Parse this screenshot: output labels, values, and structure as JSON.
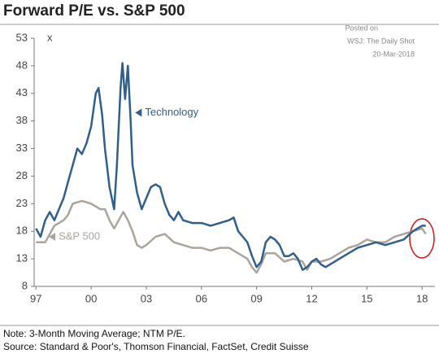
{
  "chart_data": {
    "type": "line",
    "title": "Forward P/E vs. S&P 500",
    "unit_label": "x",
    "credit": [
      "Posted on",
      "WSJ: The Daily Shot",
      "20-Mar-2018"
    ],
    "notes": [
      "Note: 3-Month Moving Average; NTM P/E.",
      "Source: Standard & Poor's, Thomson Financial, FactSet, Credit Suisse"
    ],
    "xlim": [
      1996.9,
      2018.7
    ],
    "xticks": [
      {
        "value": 1997,
        "label": "97"
      },
      {
        "value": 2000,
        "label": "00"
      },
      {
        "value": 2003,
        "label": "03"
      },
      {
        "value": 2006,
        "label": "06"
      },
      {
        "value": 2009,
        "label": "09"
      },
      {
        "value": 2012,
        "label": "12"
      },
      {
        "value": 2015,
        "label": "15"
      },
      {
        "value": 2018,
        "label": "18"
      }
    ],
    "ylim": [
      8,
      53
    ],
    "yticks": [
      8,
      13,
      18,
      23,
      28,
      33,
      38,
      43,
      48,
      53
    ],
    "series": [
      {
        "name": "Technology",
        "color": "#2f5f8a",
        "x": [
          1997.0,
          1997.25,
          1997.5,
          1997.75,
          1998.0,
          1998.25,
          1998.5,
          1998.75,
          1999.0,
          1999.25,
          1999.5,
          1999.75,
          2000.0,
          2000.25,
          2000.4,
          2000.6,
          2000.75,
          2001.0,
          2001.25,
          2001.4,
          2001.6,
          2001.7,
          2001.85,
          2002.0,
          2002.15,
          2002.25,
          2002.5,
          2002.75,
          2003.0,
          2003.25,
          2003.5,
          2003.75,
          2004.0,
          2004.25,
          2004.5,
          2004.75,
          2005.0,
          2005.5,
          2006.0,
          2006.5,
          2007.0,
          2007.5,
          2007.75,
          2008.0,
          2008.25,
          2008.5,
          2008.75,
          2009.0,
          2009.25,
          2009.5,
          2009.75,
          2010.0,
          2010.25,
          2010.5,
          2010.75,
          2011.0,
          2011.25,
          2011.5,
          2011.75,
          2012.0,
          2012.25,
          2012.5,
          2012.75,
          2013.0,
          2013.5,
          2014.0,
          2014.5,
          2015.0,
          2015.5,
          2016.0,
          2016.5,
          2017.0,
          2017.5,
          2017.75,
          2018.0,
          2018.2
        ],
        "values": [
          18.5,
          17,
          20,
          21.5,
          20,
          22,
          24,
          27,
          30,
          33,
          32,
          34,
          37,
          43,
          44,
          39,
          33,
          26,
          22,
          30,
          44,
          48.5,
          42,
          48,
          38,
          30,
          25,
          22,
          24,
          26,
          26.5,
          26,
          23,
          21,
          20,
          21.5,
          20,
          19.5,
          19.5,
          19,
          19.5,
          20,
          20.5,
          18,
          17,
          16,
          13.5,
          11.5,
          12.5,
          16,
          17,
          16.5,
          15.5,
          13.5,
          13.5,
          14,
          13,
          11,
          11.5,
          12.5,
          13,
          12,
          11.5,
          12,
          13,
          14,
          15,
          15.5,
          16,
          15.5,
          16,
          16.5,
          18,
          18.5,
          19,
          19
        ]
      },
      {
        "name": "S&P 500",
        "color": "#aaa49c",
        "x": [
          1997.0,
          1997.5,
          1998.0,
          1998.5,
          1998.75,
          1999.0,
          1999.5,
          2000.0,
          2000.5,
          2000.75,
          2001.0,
          2001.25,
          2001.5,
          2001.75,
          2002.0,
          2002.25,
          2002.5,
          2002.75,
          2003.0,
          2003.5,
          2004.0,
          2004.5,
          2005.0,
          2005.5,
          2006.0,
          2006.5,
          2007.0,
          2007.5,
          2008.0,
          2008.5,
          2008.75,
          2009.0,
          2009.25,
          2009.5,
          2010.0,
          2010.5,
          2011.0,
          2011.5,
          2011.75,
          2012.0,
          2012.5,
          2013.0,
          2013.5,
          2014.0,
          2014.5,
          2015.0,
          2015.5,
          2016.0,
          2016.5,
          2017.0,
          2017.5,
          2018.0,
          2018.2
        ],
        "values": [
          16,
          16,
          19,
          20,
          21,
          23,
          23.5,
          23,
          22,
          22,
          20,
          18.5,
          20,
          21.5,
          20,
          18,
          15.5,
          15,
          15.5,
          17,
          17.5,
          16,
          15.5,
          15,
          15,
          14.5,
          15,
          15,
          14,
          13,
          11.5,
          10.5,
          12,
          14,
          14,
          12.5,
          13,
          12.5,
          11,
          12.5,
          12.5,
          13,
          14,
          15,
          15.5,
          16.5,
          16,
          16,
          17,
          17.5,
          18,
          18.5,
          17.5
        ]
      }
    ]
  }
}
